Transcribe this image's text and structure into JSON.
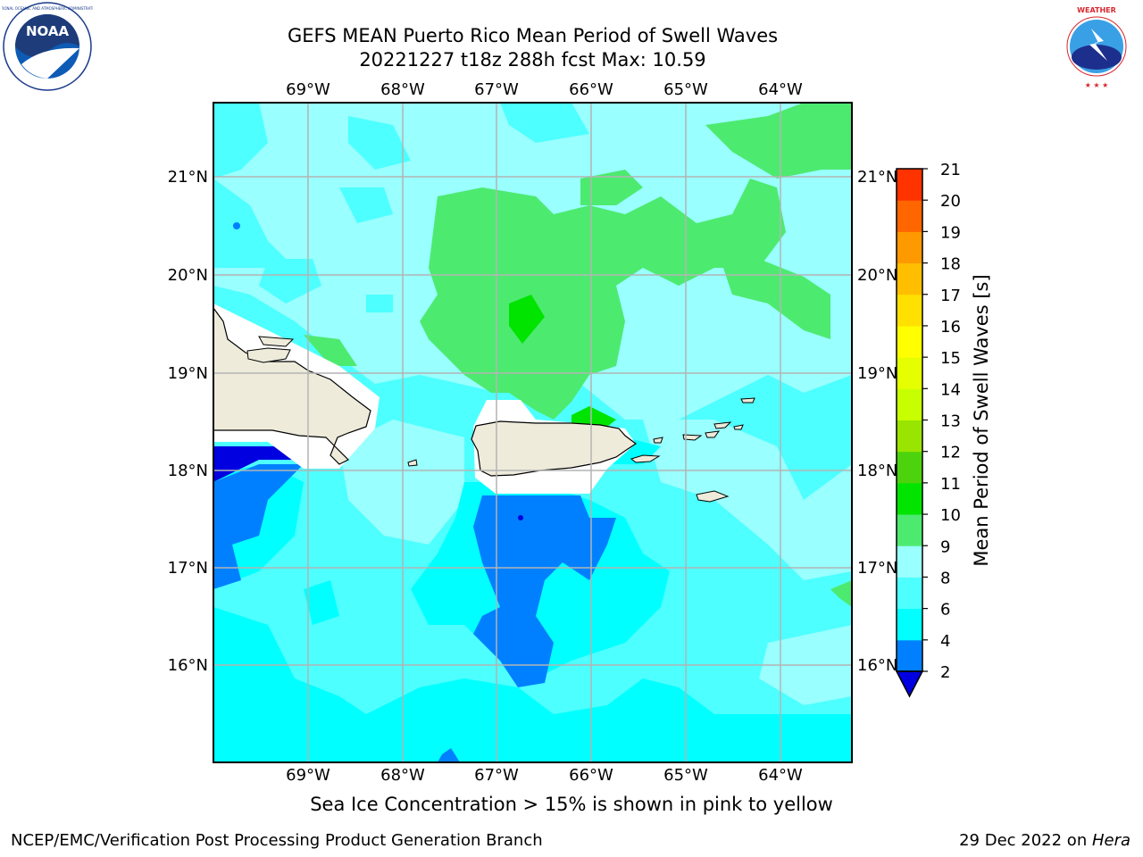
{
  "header": {
    "title_line1": "GEFS MEAN Puerto Rico Mean Period of Swell Waves",
    "title_line2": "20221227 t18z 288h fcst   Max: 10.59"
  },
  "logos": {
    "left": {
      "text": "NOAA",
      "icon": "noaa-logo-icon",
      "ring_text": "NATIONAL OCEANIC AND ATMOSPHERIC ADMINISTRATION · U.S. DEPARTMENT OF COMMERCE"
    },
    "right": {
      "icon": "nws-logo-icon",
      "ring_text": "NATIONAL WEATHER SERVICE"
    }
  },
  "map": {
    "lon_labels": [
      "69°W",
      "68°W",
      "67°W",
      "66°W",
      "65°W",
      "64°W"
    ],
    "lat_labels": [
      "21°N",
      "20°N",
      "19°N",
      "18°N",
      "17°N",
      "16°N"
    ],
    "lon_range": [
      -70.0,
      -63.25
    ],
    "lat_range": [
      15.0,
      21.75
    ],
    "grid": true,
    "land_color": "#eeebdb",
    "ocean_colors": {
      "2-4": "#0080ff",
      "4-6": "#00ffff",
      "6-8": "#4dffff",
      "8-9": "#99ffff",
      "9-10": "#4dea70",
      "10-11": "#00e400"
    }
  },
  "colorbar": {
    "label": "Mean Period of Swell Waves [s]",
    "ticks": [
      "2",
      "4",
      "6",
      "8",
      "9",
      "10",
      "11",
      "12",
      "13",
      "14",
      "15",
      "16",
      "17",
      "18",
      "19",
      "20",
      "21"
    ],
    "colors": [
      "#0080ff",
      "#00ffff",
      "#4dffff",
      "#99ffff",
      "#4dea70",
      "#00e400",
      "#4dd30d",
      "#99e400",
      "#c7ff00",
      "#e5ff00",
      "#ffff00",
      "#ffe000",
      "#ffbf00",
      "#ff9900",
      "#ff6600",
      "#ff3300",
      "#ff0000"
    ],
    "under_color": "#0000e0"
  },
  "subtitle": "Sea Ice Concentration > 15% is shown in pink to yellow",
  "footer": {
    "left": "NCEP/EMC/Verification Post Processing Product Generation Branch",
    "right_prefix": "29 Dec 2022 on ",
    "right_host": "Hera"
  }
}
